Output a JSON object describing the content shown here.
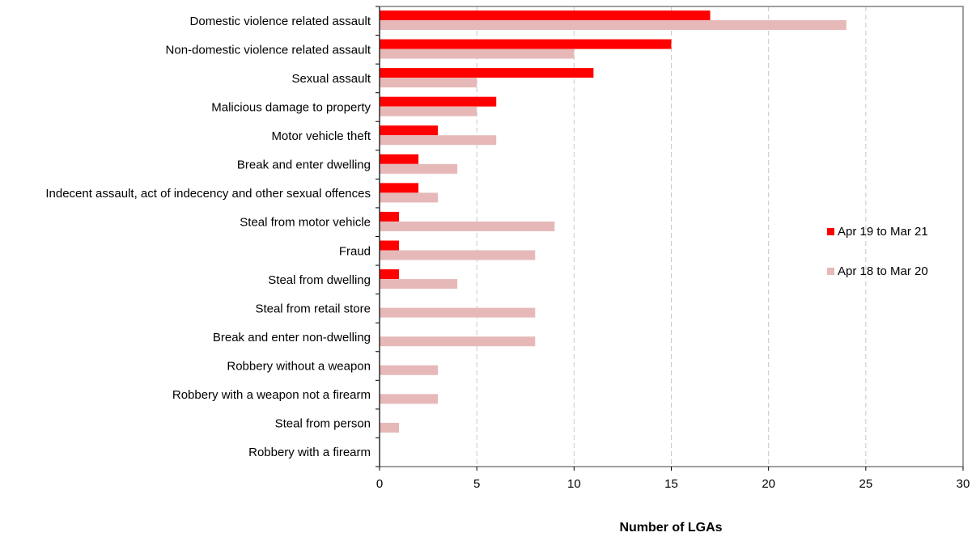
{
  "chart_data": {
    "type": "bar",
    "orientation": "horizontal",
    "categories": [
      "Domestic violence related assault",
      "Non-domestic violence related assault",
      "Sexual assault",
      "Malicious damage to property",
      "Motor vehicle theft",
      "Break and enter dwelling",
      "Indecent assault, act of indecency and other sexual offences",
      "Steal from motor vehicle",
      "Fraud",
      "Steal from dwelling",
      "Steal from retail store",
      "Break and enter non-dwelling",
      "Robbery without a weapon",
      "Robbery with a weapon not a firearm",
      "Steal from person",
      "Robbery with a firearm"
    ],
    "series": [
      {
        "name": "Apr 19 to Mar 21",
        "color": "#ff0000",
        "values": [
          17,
          15,
          11,
          6,
          3,
          2,
          2,
          1,
          1,
          1,
          0,
          0,
          0,
          0,
          0,
          0
        ]
      },
      {
        "name": "Apr 18 to Mar 20",
        "color": "#e6b9b8",
        "values": [
          24,
          10,
          5,
          5,
          6,
          4,
          3,
          9,
          8,
          4,
          8,
          8,
          3,
          3,
          1,
          0
        ]
      }
    ],
    "title": "",
    "xlabel": "Number of LGAs",
    "ylabel": "",
    "xlim": [
      0,
      30
    ],
    "xticks": [
      0,
      5,
      10,
      15,
      20,
      25,
      30
    ],
    "grid": "vertical dashed",
    "legend_position": "right"
  }
}
